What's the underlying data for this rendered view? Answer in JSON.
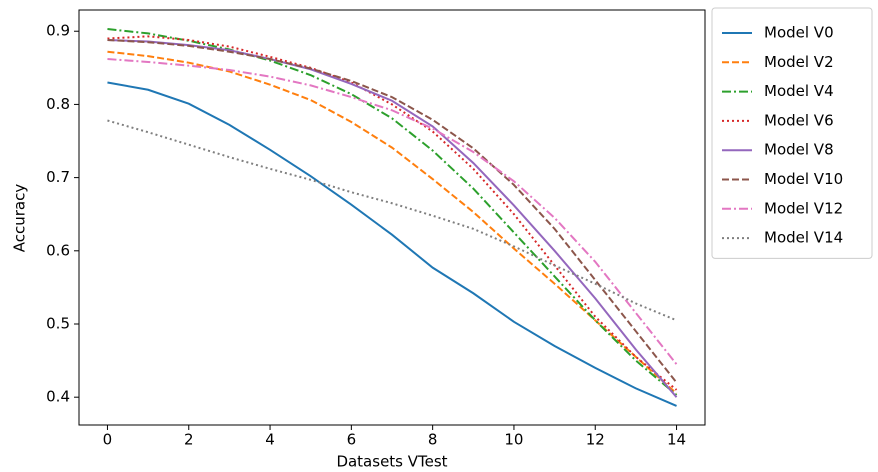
{
  "chart_data": {
    "type": "line",
    "x_label": "Datasets VTest",
    "y_label": "Accuracy",
    "x": [
      0,
      1,
      2,
      3,
      4,
      5,
      6,
      7,
      8,
      9,
      10,
      11,
      12,
      13,
      14
    ],
    "xlim": [
      -0.7,
      14.7
    ],
    "xticks": [
      0,
      2,
      4,
      6,
      8,
      10,
      12,
      14
    ],
    "ylim": [
      0.362,
      0.929
    ],
    "yticks": [
      0.4,
      0.5,
      0.6,
      0.7,
      0.8,
      0.9
    ],
    "grid": false,
    "legend": "outside-upper-right",
    "series": [
      {
        "name": "Model V0",
        "color": "#1f77b4",
        "style": "solid",
        "values": [
          0.83,
          0.82,
          0.801,
          0.772,
          0.738,
          0.702,
          0.663,
          0.622,
          0.577,
          0.542,
          0.503,
          0.47,
          0.44,
          0.412,
          0.388
        ]
      },
      {
        "name": "Model V2",
        "color": "#ff7f0e",
        "style": "dashed",
        "values": [
          0.872,
          0.866,
          0.857,
          0.845,
          0.827,
          0.806,
          0.776,
          0.741,
          0.698,
          0.653,
          0.603,
          0.555,
          0.505,
          0.455,
          0.405
        ]
      },
      {
        "name": "Model V4",
        "color": "#2ca02c",
        "style": "dashdot",
        "values": [
          0.903,
          0.897,
          0.887,
          0.875,
          0.86,
          0.84,
          0.814,
          0.781,
          0.737,
          0.685,
          0.625,
          0.565,
          0.505,
          0.45,
          0.403
        ]
      },
      {
        "name": "Model V6",
        "color": "#d62728",
        "style": "dotted",
        "values": [
          0.89,
          0.893,
          0.888,
          0.879,
          0.865,
          0.85,
          0.83,
          0.8,
          0.763,
          0.712,
          0.65,
          0.58,
          0.51,
          0.455,
          0.41
        ]
      },
      {
        "name": "Model V8",
        "color": "#9467bd",
        "style": "solid",
        "values": [
          0.888,
          0.886,
          0.881,
          0.874,
          0.862,
          0.848,
          0.828,
          0.805,
          0.77,
          0.72,
          0.662,
          0.6,
          0.535,
          0.465,
          0.4
        ]
      },
      {
        "name": "Model V10",
        "color": "#8c564b",
        "style": "dashed",
        "values": [
          0.888,
          0.885,
          0.88,
          0.872,
          0.862,
          0.849,
          0.832,
          0.81,
          0.779,
          0.74,
          0.69,
          0.63,
          0.56,
          0.49,
          0.42
        ]
      },
      {
        "name": "Model V12",
        "color": "#e377c2",
        "style": "dashdot",
        "values": [
          0.862,
          0.858,
          0.853,
          0.847,
          0.838,
          0.826,
          0.81,
          0.792,
          0.767,
          0.735,
          0.695,
          0.645,
          0.585,
          0.515,
          0.445
        ]
      },
      {
        "name": "Model V14",
        "color": "#7f7f7f",
        "style": "dotted",
        "values": [
          0.778,
          0.762,
          0.745,
          0.728,
          0.712,
          0.697,
          0.68,
          0.665,
          0.648,
          0.63,
          0.606,
          0.58,
          0.555,
          0.528,
          0.505
        ]
      }
    ]
  }
}
